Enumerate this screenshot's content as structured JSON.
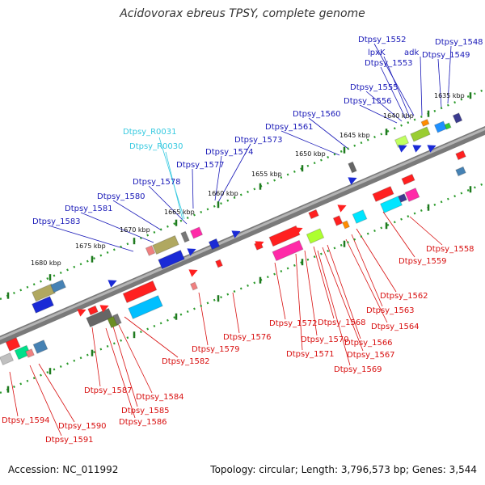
{
  "title": "Acidovorax ebreus TPSY, complete genome",
  "footer": {
    "accession_label": "Accession:",
    "accession": "NC_011992",
    "topology_label": "Topology:",
    "topology": "circular;",
    "length_label": "Length:",
    "length": "3,796,573 bp;",
    "genes_label": "Genes:",
    "genes": "3,544"
  },
  "colors": {
    "plus_strand_labels": "#1a1ab8",
    "rna_labels": "#35c9e0",
    "minus_strand_labels": "#d81010",
    "backbone": "#8a8a8a",
    "dotted_track": "#2a9a2a"
  },
  "kbp_ticks": [
    "1635 kbp",
    "1640 kbp",
    "1645 kbp",
    "1650 kbp",
    "1655 kbp",
    "1660 kbp",
    "1665 kbp",
    "1670 kbp",
    "1675 kbp",
    "1680 kbp"
  ],
  "genes_plus": [
    "Dtpsy_1548",
    "Dtpsy_1549",
    "adk",
    "Dtpsy_1552",
    "lpxK",
    "Dtpsy_1553",
    "Dtpsy_1555",
    "Dtpsy_1556",
    "Dtpsy_1560",
    "Dtpsy_1561",
    "Dtpsy_1573",
    "Dtpsy_1574",
    "Dtpsy_1577",
    "Dtpsy_1578",
    "Dtpsy_1580",
    "Dtpsy_1581",
    "Dtpsy_1583"
  ],
  "genes_rna": [
    "Dtpsy_R0031",
    "Dtpsy_R0030"
  ],
  "genes_minus": [
    "Dtpsy_1558",
    "Dtpsy_1559",
    "Dtpsy_1562",
    "Dtpsy_1563",
    "Dtpsy_1564",
    "Dtpsy_1566",
    "Dtpsy_1567",
    "Dtpsy_1568",
    "Dtpsy_1569",
    "Dtpsy_1570",
    "Dtpsy_1571",
    "Dtpsy_1572",
    "Dtpsy_1576",
    "Dtpsy_1579",
    "Dtpsy_1582",
    "Dtpsy_1584",
    "Dtpsy_1585",
    "Dtpsy_1586",
    "Dtpsy_1587",
    "Dtpsy_1590",
    "Dtpsy_1591",
    "Dtpsy_1594"
  ]
}
